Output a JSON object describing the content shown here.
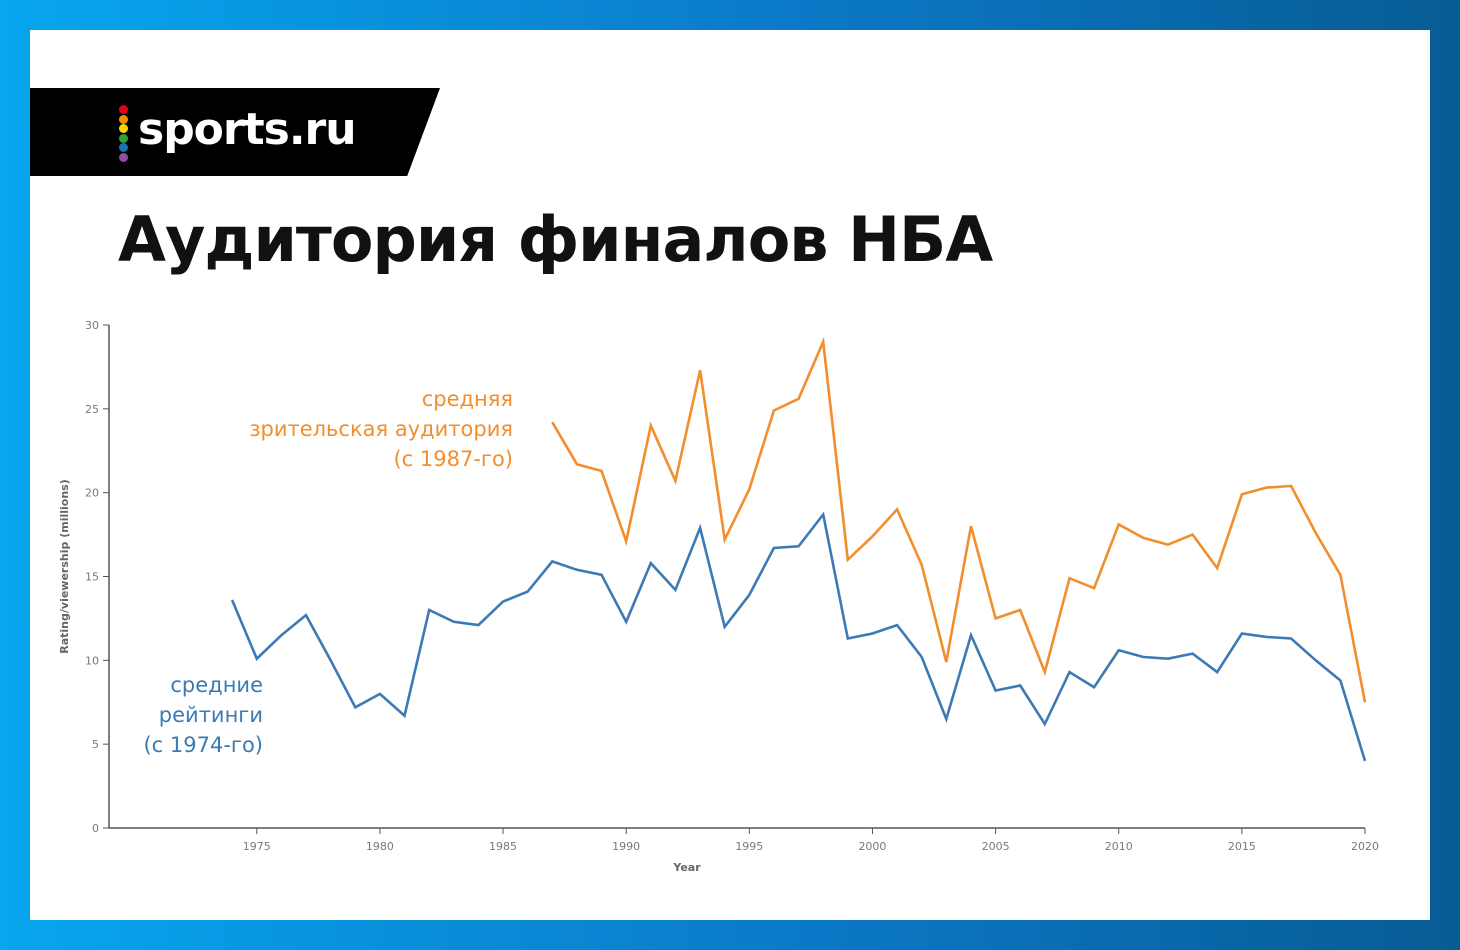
{
  "brand": {
    "name": "sports.ru",
    "dot_colors": [
      "#e2001a",
      "#f39200",
      "#ffd500",
      "#2aa13a",
      "#1d71b8",
      "#8e4f9e"
    ]
  },
  "title": "Аудитория финалов НБА",
  "chart_data": {
    "type": "line",
    "title": "Аудитория финалов НБА",
    "xlabel": "Year",
    "ylabel": "Rating/viewership (millions)",
    "xlim": [
      1969,
      2020
    ],
    "ylim": [
      0,
      30
    ],
    "x_ticks": [
      1975,
      1980,
      1985,
      1990,
      1995,
      2000,
      2005,
      2010,
      2015,
      2020
    ],
    "y_ticks": [
      0,
      5,
      10,
      15,
      20,
      25,
      30
    ],
    "grid": false,
    "legend": "inline annotations",
    "series": [
      {
        "name": "средние рейтинги (с 1974-го)",
        "label_lines": [
          "средние",
          "рейтинги",
          "(с 1974-го)"
        ],
        "color": "#3d7ab5",
        "x": [
          1974,
          1975,
          1976,
          1977,
          1978,
          1979,
          1980,
          1981,
          1982,
          1983,
          1984,
          1985,
          1986,
          1987,
          1988,
          1989,
          1990,
          1991,
          1992,
          1993,
          1994,
          1995,
          1996,
          1997,
          1998,
          1999,
          2000,
          2001,
          2002,
          2003,
          2004,
          2005,
          2006,
          2007,
          2008,
          2009,
          2010,
          2011,
          2012,
          2013,
          2014,
          2015,
          2016,
          2017,
          2018,
          2019,
          2020
        ],
        "values": [
          13.6,
          10.1,
          11.5,
          12.7,
          10.0,
          7.2,
          8.0,
          6.7,
          13.0,
          12.3,
          12.1,
          13.5,
          14.1,
          15.9,
          15.4,
          15.1,
          12.3,
          15.8,
          14.2,
          17.9,
          12.0,
          13.9,
          16.7,
          16.8,
          18.7,
          11.3,
          11.6,
          12.1,
          10.2,
          6.5,
          11.5,
          8.2,
          8.5,
          6.2,
          9.3,
          8.4,
          10.6,
          10.2,
          10.1,
          10.4,
          9.3,
          11.6,
          11.4,
          11.3,
          10.0,
          8.8,
          4.0
        ]
      },
      {
        "name": "средняя зрительская аудитория (с 1987-го)",
        "label_lines": [
          "средняя",
          "зрительская аудитория",
          "(с 1987-го)"
        ],
        "color": "#f28e2b",
        "x": [
          1987,
          1988,
          1989,
          1990,
          1991,
          1992,
          1993,
          1994,
          1995,
          1996,
          1997,
          1998,
          1999,
          2000,
          2001,
          2002,
          2003,
          2004,
          2005,
          2006,
          2007,
          2008,
          2009,
          2010,
          2011,
          2012,
          2013,
          2014,
          2015,
          2016,
          2017,
          2018,
          2019,
          2020
        ],
        "values": [
          24.2,
          21.7,
          21.3,
          17.1,
          24.0,
          20.7,
          27.3,
          17.2,
          20.2,
          24.9,
          25.6,
          29.0,
          16.0,
          17.4,
          19.0,
          15.7,
          9.9,
          18.0,
          12.5,
          13.0,
          9.3,
          14.9,
          14.3,
          18.1,
          17.3,
          16.9,
          17.5,
          15.5,
          19.9,
          20.3,
          20.4,
          17.6,
          15.1,
          7.5
        ]
      }
    ]
  }
}
